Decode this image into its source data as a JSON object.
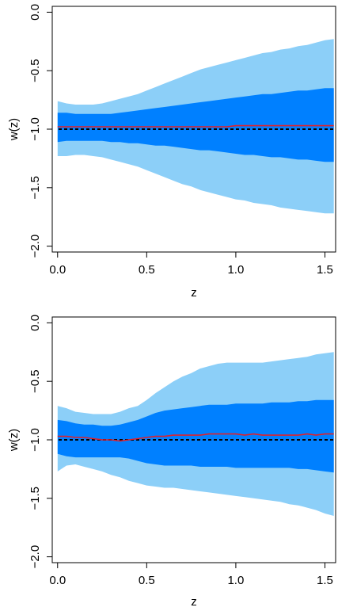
{
  "colors": {
    "band95": "#8CCFF8",
    "band68": "#0080FF",
    "median": "#E0202A",
    "reference": "#000000"
  },
  "chart_data": [
    {
      "type": "area",
      "xlabel": "z",
      "ylabel": "w(z)",
      "xlim": [
        -0.03,
        1.56
      ],
      "ylim": [
        -2.05,
        0.05
      ],
      "xticks": [
        0.0,
        0.5,
        1.0,
        1.5
      ],
      "xtick_labels": [
        "0.0",
        "0.5",
        "1.0",
        "1.5"
      ],
      "yticks": [
        0.0,
        -0.5,
        -1.0,
        -1.5,
        -2.0
      ],
      "ytick_labels": [
        "0.0",
        "−0.5",
        "−1.0",
        "−1.5",
        "−2.0"
      ],
      "reference_line": {
        "y": -1.0,
        "style": "dashed"
      },
      "x": [
        0.0,
        0.05,
        0.1,
        0.15,
        0.2,
        0.25,
        0.3,
        0.35,
        0.4,
        0.45,
        0.5,
        0.55,
        0.6,
        0.65,
        0.7,
        0.75,
        0.8,
        0.85,
        0.9,
        0.95,
        1.0,
        1.05,
        1.1,
        1.15,
        1.2,
        1.25,
        1.3,
        1.35,
        1.4,
        1.45,
        1.5,
        1.55
      ],
      "series": [
        {
          "role": "upper95",
          "values": [
            -0.76,
            -0.78,
            -0.79,
            -0.79,
            -0.79,
            -0.78,
            -0.76,
            -0.74,
            -0.72,
            -0.7,
            -0.67,
            -0.64,
            -0.61,
            -0.58,
            -0.55,
            -0.52,
            -0.49,
            -0.47,
            -0.45,
            -0.43,
            -0.41,
            -0.39,
            -0.37,
            -0.35,
            -0.34,
            -0.32,
            -0.31,
            -0.29,
            -0.28,
            -0.26,
            -0.24,
            -0.23
          ]
        },
        {
          "role": "upper68",
          "values": [
            -0.86,
            -0.86,
            -0.87,
            -0.87,
            -0.87,
            -0.87,
            -0.87,
            -0.86,
            -0.85,
            -0.84,
            -0.83,
            -0.82,
            -0.81,
            -0.8,
            -0.79,
            -0.78,
            -0.77,
            -0.76,
            -0.75,
            -0.74,
            -0.73,
            -0.72,
            -0.71,
            -0.7,
            -0.7,
            -0.69,
            -0.68,
            -0.67,
            -0.67,
            -0.66,
            -0.65,
            -0.65
          ]
        },
        {
          "role": "median",
          "values": [
            -0.98,
            -0.98,
            -0.98,
            -0.98,
            -0.98,
            -0.98,
            -0.98,
            -0.98,
            -0.98,
            -0.98,
            -0.98,
            -0.98,
            -0.98,
            -0.98,
            -0.98,
            -0.98,
            -0.98,
            -0.98,
            -0.98,
            -0.98,
            -0.97,
            -0.97,
            -0.97,
            -0.97,
            -0.97,
            -0.97,
            -0.97,
            -0.97,
            -0.97,
            -0.97,
            -0.97,
            -0.97
          ]
        },
        {
          "role": "lower68",
          "values": [
            -1.11,
            -1.1,
            -1.1,
            -1.1,
            -1.1,
            -1.1,
            -1.11,
            -1.11,
            -1.12,
            -1.12,
            -1.13,
            -1.14,
            -1.14,
            -1.15,
            -1.16,
            -1.17,
            -1.18,
            -1.18,
            -1.19,
            -1.2,
            -1.21,
            -1.22,
            -1.22,
            -1.23,
            -1.24,
            -1.24,
            -1.25,
            -1.26,
            -1.26,
            -1.27,
            -1.28,
            -1.28
          ]
        },
        {
          "role": "lower95",
          "values": [
            -1.23,
            -1.23,
            -1.22,
            -1.22,
            -1.23,
            -1.24,
            -1.26,
            -1.28,
            -1.3,
            -1.32,
            -1.35,
            -1.38,
            -1.41,
            -1.44,
            -1.47,
            -1.49,
            -1.52,
            -1.54,
            -1.56,
            -1.58,
            -1.6,
            -1.61,
            -1.63,
            -1.64,
            -1.65,
            -1.67,
            -1.68,
            -1.69,
            -1.7,
            -1.71,
            -1.72,
            -1.72
          ]
        }
      ]
    },
    {
      "type": "area",
      "xlabel": "z",
      "ylabel": "w(z)",
      "xlim": [
        -0.03,
        1.56
      ],
      "ylim": [
        -2.05,
        0.05
      ],
      "xticks": [
        0.0,
        0.5,
        1.0,
        1.5
      ],
      "xtick_labels": [
        "0.0",
        "0.5",
        "1.0",
        "1.5"
      ],
      "yticks": [
        0.0,
        -0.5,
        -1.0,
        -1.5,
        -2.0
      ],
      "ytick_labels": [
        "0.0",
        "−0.5",
        "−1.0",
        "−1.5",
        "−2.0"
      ],
      "reference_line": {
        "y": -1.0,
        "style": "dashed"
      },
      "x": [
        0.0,
        0.05,
        0.1,
        0.15,
        0.2,
        0.25,
        0.3,
        0.35,
        0.4,
        0.45,
        0.5,
        0.55,
        0.6,
        0.65,
        0.7,
        0.75,
        0.8,
        0.85,
        0.9,
        0.95,
        1.0,
        1.05,
        1.1,
        1.15,
        1.2,
        1.25,
        1.3,
        1.35,
        1.4,
        1.45,
        1.5,
        1.55
      ],
      "series": [
        {
          "role": "upper95",
          "values": [
            -0.71,
            -0.73,
            -0.76,
            -0.77,
            -0.78,
            -0.78,
            -0.78,
            -0.76,
            -0.73,
            -0.71,
            -0.66,
            -0.6,
            -0.55,
            -0.5,
            -0.46,
            -0.43,
            -0.39,
            -0.37,
            -0.35,
            -0.34,
            -0.34,
            -0.34,
            -0.34,
            -0.34,
            -0.33,
            -0.32,
            -0.31,
            -0.3,
            -0.29,
            -0.27,
            -0.26,
            -0.25
          ]
        },
        {
          "role": "upper68",
          "values": [
            -0.83,
            -0.84,
            -0.86,
            -0.87,
            -0.87,
            -0.88,
            -0.88,
            -0.87,
            -0.85,
            -0.83,
            -0.8,
            -0.77,
            -0.75,
            -0.74,
            -0.73,
            -0.72,
            -0.71,
            -0.7,
            -0.7,
            -0.7,
            -0.69,
            -0.69,
            -0.69,
            -0.69,
            -0.68,
            -0.68,
            -0.68,
            -0.67,
            -0.67,
            -0.66,
            -0.66,
            -0.66
          ]
        },
        {
          "role": "median",
          "values": [
            -0.97,
            -0.97,
            -0.98,
            -0.98,
            -0.99,
            -1.0,
            -1.0,
            -1.01,
            -1.0,
            -0.99,
            -0.98,
            -0.97,
            -0.97,
            -0.96,
            -0.96,
            -0.96,
            -0.96,
            -0.95,
            -0.95,
            -0.95,
            -0.95,
            -0.96,
            -0.95,
            -0.96,
            -0.96,
            -0.96,
            -0.96,
            -0.96,
            -0.95,
            -0.96,
            -0.95,
            -0.95
          ]
        },
        {
          "role": "lower68",
          "values": [
            -1.12,
            -1.14,
            -1.15,
            -1.15,
            -1.15,
            -1.15,
            -1.15,
            -1.15,
            -1.16,
            -1.18,
            -1.2,
            -1.21,
            -1.22,
            -1.22,
            -1.22,
            -1.22,
            -1.23,
            -1.23,
            -1.23,
            -1.23,
            -1.24,
            -1.24,
            -1.24,
            -1.24,
            -1.24,
            -1.24,
            -1.24,
            -1.25,
            -1.25,
            -1.26,
            -1.27,
            -1.28
          ]
        },
        {
          "role": "lower95",
          "values": [
            -1.27,
            -1.22,
            -1.21,
            -1.23,
            -1.25,
            -1.27,
            -1.3,
            -1.32,
            -1.35,
            -1.37,
            -1.39,
            -1.4,
            -1.41,
            -1.41,
            -1.42,
            -1.43,
            -1.44,
            -1.45,
            -1.46,
            -1.47,
            -1.48,
            -1.49,
            -1.5,
            -1.51,
            -1.52,
            -1.53,
            -1.55,
            -1.56,
            -1.58,
            -1.6,
            -1.63,
            -1.65
          ]
        }
      ]
    }
  ]
}
